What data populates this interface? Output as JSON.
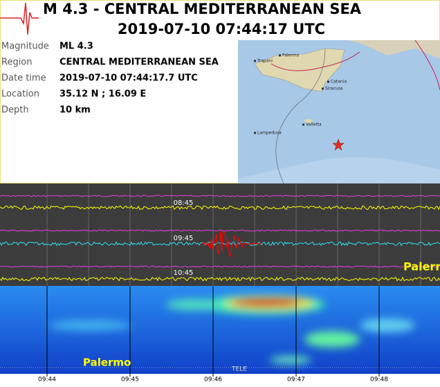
{
  "header": {
    "title": "M 4.3 - CENTRAL MEDITERRANEAN SEA",
    "datetime": "2019-07-10 07:44:17 UTC"
  },
  "info": {
    "rows": [
      [
        "Magnitude",
        "ML 4.3"
      ],
      [
        "Region",
        "CENTRAL MEDITERRANEAN SEA"
      ],
      [
        "Date time",
        "2019-07-10 07:44:17.7 UTC"
      ],
      [
        "Location",
        "35.12 N ; 16.09 E"
      ],
      [
        "Depth",
        "10 km"
      ]
    ]
  },
  "map": {
    "labels": [
      "Trapani",
      "Palermo",
      "Catania",
      "Siracusa",
      "Valletta",
      "Lampedusa"
    ]
  },
  "helicorder": {
    "times": [
      "08:45",
      "09:45",
      "10:45"
    ],
    "station": "Palermo"
  },
  "spectrogram": {
    "station": "Palermo",
    "note": "TELE",
    "times": [
      "09:44",
      "09:45",
      "09:46",
      "09:47",
      "09:48"
    ]
  }
}
